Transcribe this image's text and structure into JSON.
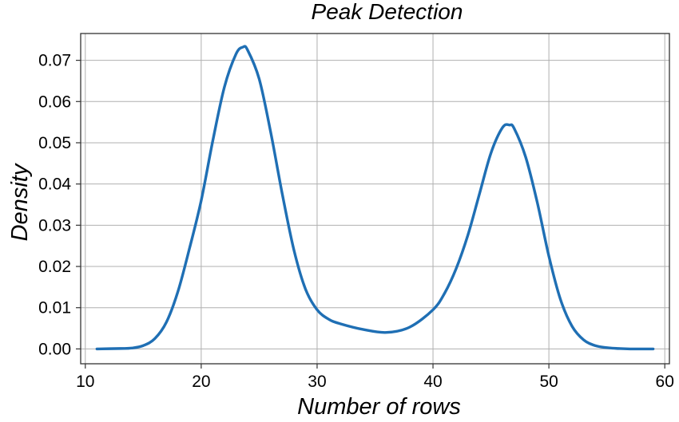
{
  "chart_data": {
    "type": "line",
    "title": "Peak Detection",
    "xlabel": "Number of rows",
    "ylabel": "Density",
    "xlim": [
      9.6,
      60.4
    ],
    "ylim": [
      -0.0036,
      0.0765
    ],
    "xticks": [
      10,
      20,
      30,
      40,
      50,
      60
    ],
    "xtick_labels": [
      "10",
      "20",
      "30",
      "40",
      "50",
      "60"
    ],
    "yticks": [
      0.0,
      0.01,
      0.02,
      0.03,
      0.04,
      0.05,
      0.06,
      0.07
    ],
    "ytick_labels": [
      "0.00",
      "0.01",
      "0.02",
      "0.03",
      "0.04",
      "0.05",
      "0.06",
      "0.07"
    ],
    "grid": true,
    "legend": false,
    "series": [
      {
        "color": "#1f6fb4",
        "x": [
          11,
          13,
          14,
          15,
          16,
          17,
          18,
          19,
          20,
          21,
          22,
          23,
          23.6,
          24,
          25,
          26,
          27,
          28,
          29,
          30,
          31,
          32,
          34,
          36,
          38,
          40,
          41,
          42,
          43,
          44,
          45,
          46,
          46.6,
          47,
          48,
          49,
          50,
          51,
          52,
          53,
          54,
          55,
          56,
          57,
          59
        ],
        "y": [
          0.0,
          0.0001,
          0.0002,
          0.0008,
          0.0025,
          0.0065,
          0.014,
          0.0245,
          0.036,
          0.0505,
          0.0635,
          0.0715,
          0.0732,
          0.0725,
          0.0655,
          0.0525,
          0.0375,
          0.024,
          0.0145,
          0.0095,
          0.0072,
          0.0061,
          0.0047,
          0.004,
          0.0053,
          0.0095,
          0.0135,
          0.0195,
          0.0275,
          0.0375,
          0.0475,
          0.0537,
          0.0543,
          0.0535,
          0.0465,
          0.0355,
          0.0225,
          0.012,
          0.0055,
          0.0022,
          0.0008,
          0.0003,
          0.0001,
          0.0,
          0.0
        ]
      }
    ]
  }
}
